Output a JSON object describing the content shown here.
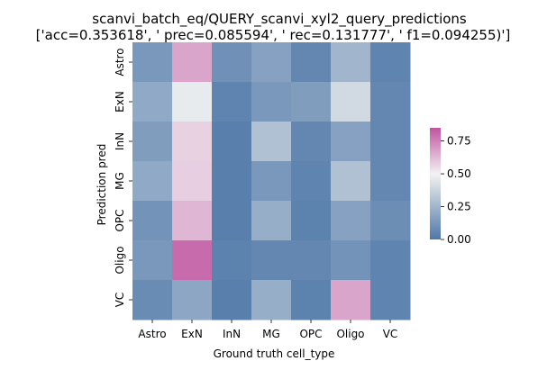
{
  "chart_data": {
    "type": "heatmap",
    "title": "scanvi_batch_eq/QUERY_scanvi_xyl2_query_predictions",
    "subtitle": "['acc=0.353618', ' prec=0.085594', ' rec=0.131777', ' f1=0.094255)']",
    "xlabel": "Ground truth cell_type",
    "ylabel": "Prediction pred",
    "x_categories": [
      "Astro",
      "ExN",
      "InN",
      "MG",
      "OPC",
      "Oligo",
      "VC"
    ],
    "y_categories": [
      "Astro",
      "ExN",
      "InN",
      "MG",
      "OPC",
      "Oligo",
      "VC"
    ],
    "values": [
      [
        0.13,
        0.67,
        0.1,
        0.17,
        0.06,
        0.25,
        0.05
      ],
      [
        0.2,
        0.47,
        0.05,
        0.13,
        0.15,
        0.4,
        0.06
      ],
      [
        0.15,
        0.57,
        0.03,
        0.3,
        0.06,
        0.17,
        0.06
      ],
      [
        0.2,
        0.58,
        0.03,
        0.13,
        0.05,
        0.3,
        0.06
      ],
      [
        0.11,
        0.63,
        0.03,
        0.22,
        0.04,
        0.17,
        0.09
      ],
      [
        0.13,
        0.8,
        0.04,
        0.06,
        0.06,
        0.11,
        0.05
      ],
      [
        0.08,
        0.19,
        0.03,
        0.22,
        0.04,
        0.67,
        0.05
      ]
    ],
    "colorbar": {
      "min": 0.0,
      "max": 0.85,
      "ticks": [
        "0.00",
        "0.25",
        "0.50",
        "0.75"
      ],
      "tick_values": [
        0,
        0.25,
        0.5,
        0.75
      ]
    },
    "colors": {
      "low": "#4f78a8",
      "mid": "#f2f2f2",
      "high": "#c054a2"
    }
  }
}
